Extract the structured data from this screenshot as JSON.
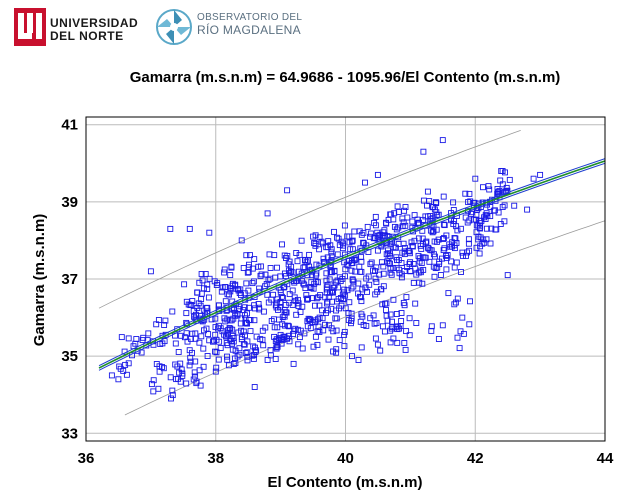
{
  "logos": {
    "university_line1": "UNIVERSIDAD",
    "university_line2": "DEL NORTE",
    "observatory_line1": "OBSERVATORIO DEL",
    "observatory_line2": "RÍO MAGDALENA"
  },
  "chart_data": {
    "type": "scatter",
    "title": "Gamarra (m.s.n.m) = 64.9686 - 1095.96/El Contento (m.s.n.m)",
    "xlabel": "El Contento (m.s.n.m)",
    "ylabel": "Gamarra (m.s.n.m)",
    "xlim": [
      36,
      44
    ],
    "ylim": [
      32.8,
      41.2
    ],
    "xticks": [
      36,
      38,
      40,
      42,
      44
    ],
    "yticks": [
      33,
      35,
      37,
      39,
      41
    ],
    "grid": true,
    "legend": "none",
    "colors": {
      "points": "#1a1ae6",
      "fit": "#1f8f2a",
      "confidence": "#1f3fd0",
      "prediction": "#9a9a9a",
      "grid": "#bbbbbb"
    },
    "model": {
      "a": 64.9686,
      "b": -1095.96,
      "form": "y = a + b/x"
    },
    "prediction_offset": 1.55,
    "confidence_offset": 0.06,
    "point_bands": [
      {
        "x0": 36.5,
        "x1": 42.6,
        "y_start": 35.0,
        "slope": 0.72,
        "spread": 0.28,
        "count": 260
      },
      {
        "x0": 37.6,
        "x1": 42.5,
        "y_start": 35.4,
        "slope": 0.7,
        "spread": 0.32,
        "count": 230
      },
      {
        "x0": 37.0,
        "x1": 42.3,
        "y_start": 34.1,
        "slope": 0.78,
        "spread": 0.3,
        "count": 200
      },
      {
        "x0": 37.5,
        "x1": 41.5,
        "y_start": 36.5,
        "slope": 0.6,
        "spread": 0.25,
        "count": 150
      },
      {
        "x0": 38.0,
        "x1": 41.0,
        "y_start": 35.3,
        "slope": 0.2,
        "spread": 0.35,
        "count": 90
      },
      {
        "x0": 38.5,
        "x1": 42.0,
        "y_start": 36.0,
        "slope": 0.0,
        "spread": 0.5,
        "count": 70
      }
    ],
    "outlier_points": [
      [
        37.3,
        38.3
      ],
      [
        37.6,
        38.3
      ],
      [
        37.9,
        38.2
      ],
      [
        38.8,
        38.7
      ],
      [
        39.1,
        39.3
      ],
      [
        40.3,
        39.5
      ],
      [
        40.5,
        39.7
      ],
      [
        41.2,
        40.3
      ],
      [
        41.5,
        40.6
      ],
      [
        42.0,
        39.6
      ],
      [
        42.4,
        39.8
      ],
      [
        42.8,
        38.8
      ],
      [
        42.5,
        37.1
      ],
      [
        41.8,
        36.0
      ],
      [
        41.5,
        35.8
      ],
      [
        40.8,
        35.7
      ],
      [
        40.5,
        35.3
      ],
      [
        40.1,
        35.0
      ],
      [
        39.6,
        36.0
      ],
      [
        39.2,
        34.8
      ],
      [
        38.8,
        34.9
      ],
      [
        38.0,
        34.6
      ],
      [
        37.7,
        34.3
      ],
      [
        37.8,
        35.9
      ],
      [
        36.5,
        34.4
      ],
      [
        36.4,
        34.5
      ],
      [
        37.0,
        37.2
      ],
      [
        38.4,
        38.0
      ],
      [
        39.5,
        38.1
      ],
      [
        43.0,
        39.7
      ],
      [
        42.9,
        39.6
      ],
      [
        41.0,
        37.2
      ],
      [
        40.2,
        34.9
      ],
      [
        38.6,
        34.2
      ],
      [
        42.6,
        38.9
      ]
    ]
  }
}
